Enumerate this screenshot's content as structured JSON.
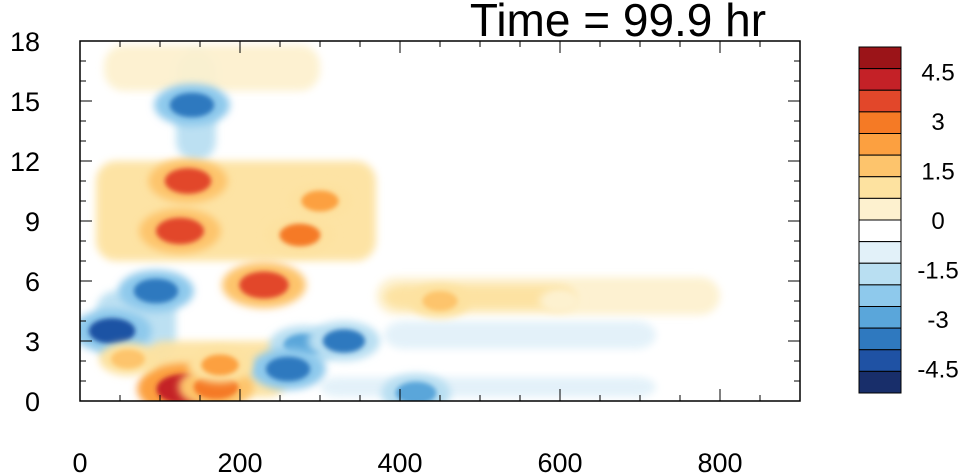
{
  "chart_data": {
    "type": "heatmap",
    "title": "Time = 99.9 hr",
    "xlabel": "",
    "ylabel": "",
    "xlim": [
      0,
      900
    ],
    "ylim": [
      0,
      18
    ],
    "x_ticks": [
      0,
      200,
      400,
      600,
      800
    ],
    "y_ticks": [
      0,
      3,
      6,
      9,
      12,
      15,
      18
    ],
    "x_tick_labels": [
      "0",
      "200",
      "400",
      "600",
      "800"
    ],
    "y_tick_labels": [
      "0",
      "3",
      "6",
      "9",
      "12",
      "15",
      "18"
    ],
    "colorbar": {
      "min": -5.25,
      "max": 5.25,
      "levels": [
        -5.25,
        -4.5,
        -3.75,
        -3.0,
        -2.25,
        -1.5,
        -0.75,
        -0.25,
        0.25,
        0.75,
        1.5,
        2.25,
        3.0,
        3.75,
        4.5,
        5.25
      ],
      "labels": [
        "4.5",
        "3",
        "1.5",
        "0",
        "-1.5",
        "-3",
        "-4.5"
      ],
      "label_values": [
        4.5,
        3.0,
        1.5,
        0.0,
        -1.5,
        -3.0,
        -4.5
      ],
      "colors": [
        "#182e6a",
        "#1f52a4",
        "#2f79bf",
        "#5aa6da",
        "#8ec9ec",
        "#b9dff2",
        "#e2f1f9",
        "#ffffff",
        "#fdf1cf",
        "#fde2a0",
        "#fdc46c",
        "#fca040",
        "#f57a25",
        "#e2472a",
        "#c42127",
        "#9b1418"
      ]
    },
    "features": [
      {
        "x": 130,
        "y": 0.6,
        "value": 5.0
      },
      {
        "x": 170,
        "y": 0.7,
        "value": 3.5
      },
      {
        "x": 135,
        "y": 11.0,
        "value": 3.8
      },
      {
        "x": 125,
        "y": 8.5,
        "value": 4.0
      },
      {
        "x": 230,
        "y": 5.8,
        "value": 4.2
      },
      {
        "x": 275,
        "y": 8.3,
        "value": 3.0
      },
      {
        "x": 300,
        "y": 10.0,
        "value": 2.5
      },
      {
        "x": 40,
        "y": 3.5,
        "value": -3.8
      },
      {
        "x": 95,
        "y": 5.5,
        "value": -3.5
      },
      {
        "x": 140,
        "y": 14.8,
        "value": -3.5
      },
      {
        "x": 280,
        "y": 2.8,
        "value": -3.0
      },
      {
        "x": 330,
        "y": 3.0,
        "value": -3.2
      },
      {
        "x": 260,
        "y": 1.6,
        "value": -3.5
      },
      {
        "x": 420,
        "y": 0.4,
        "value": -3.0
      },
      {
        "x": 450,
        "y": 5.0,
        "value": 2.2
      },
      {
        "x": 600,
        "y": 5.0,
        "value": 0.6
      },
      {
        "x": 60,
        "y": 2.1,
        "value": 2.0
      },
      {
        "x": 175,
        "y": 1.8,
        "value": 2.5
      }
    ]
  }
}
